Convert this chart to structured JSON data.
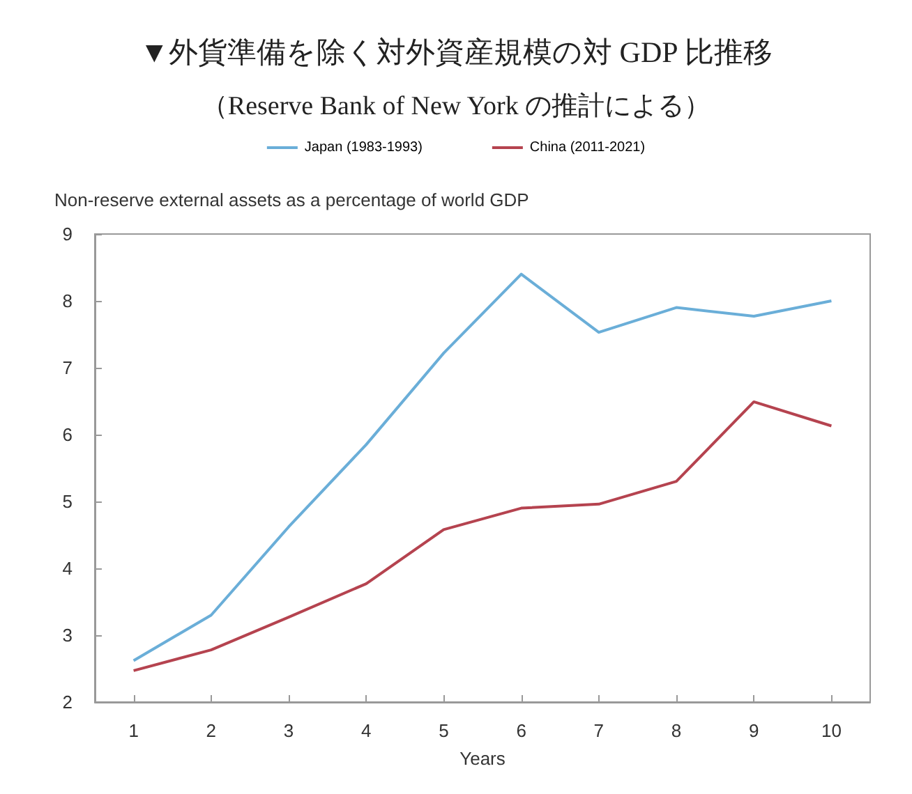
{
  "chart_data": {
    "type": "line",
    "title": "▼外貨準備を除く対外資産規模の対 GDP 比推移",
    "subtitle": "（Reserve Bank of New York の推計による）",
    "ylabel": "Non-reserve external assets as a percentage of world GDP",
    "xlabel": "Years",
    "categories": [
      "1",
      "2",
      "3",
      "4",
      "5",
      "6",
      "7",
      "8",
      "9",
      "10"
    ],
    "series": [
      {
        "name": "Japan (1983-1993)",
        "color": "#6aaed8",
        "values": [
          2.62,
          3.3,
          4.62,
          5.85,
          7.22,
          8.4,
          7.53,
          7.9,
          7.77,
          8.0
        ]
      },
      {
        "name": "China (2011-2021)",
        "color": "#b5434f",
        "values": [
          2.47,
          2.78,
          3.27,
          3.77,
          4.58,
          4.9,
          4.96,
          5.3,
          6.49,
          6.13
        ]
      }
    ],
    "ylim": [
      2,
      9
    ],
    "yticks": [
      2,
      3,
      4,
      5,
      6,
      7,
      8,
      9
    ],
    "grid": false,
    "legend": "top",
    "marker": "none",
    "line_style": "solid"
  }
}
